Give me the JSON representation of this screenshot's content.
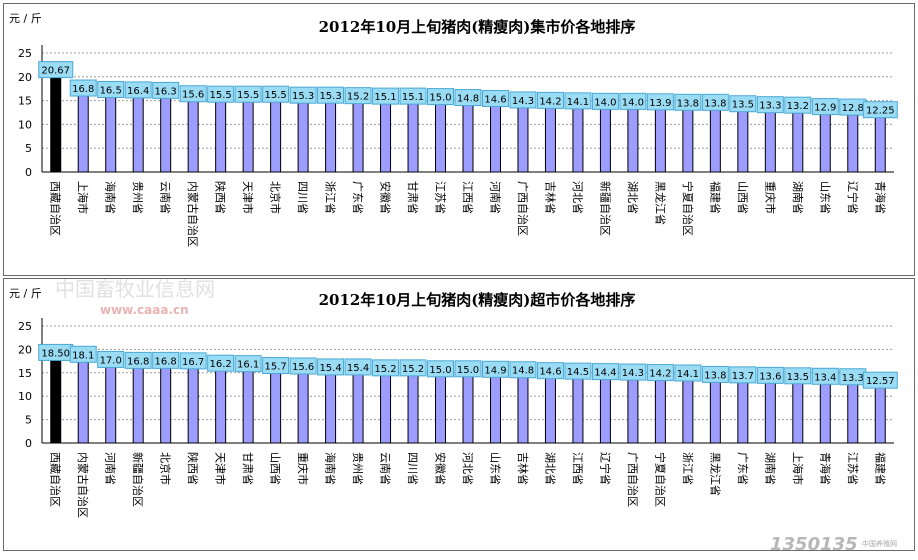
{
  "chart_data": [
    {
      "type": "bar",
      "title": "2012年10月上旬猪肉(精瘦肉)集市价各地排序",
      "ylabel": "元/斤",
      "ylim": [
        0,
        25
      ],
      "yticks": [
        0,
        5,
        10,
        15,
        20,
        25
      ],
      "grid": true,
      "categories": [
        "西藏自治区",
        "上海市",
        "海南省",
        "贵州省",
        "云南省",
        "内蒙古自治区",
        "陕西省",
        "天津市",
        "北京市",
        "四川省",
        "浙江省",
        "广东省",
        "安徽省",
        "甘肃省",
        "江苏省",
        "江西省",
        "河南省",
        "广西自治区",
        "吉林省",
        "河北省",
        "新疆自治区",
        "湖北省",
        "黑龙江省",
        "宁夏自治区",
        "福建省",
        "山西省",
        "重庆市",
        "湖南省",
        "山东省",
        "辽宁省",
        "青海省"
      ],
      "values": [
        20.67,
        16.8,
        16.5,
        16.4,
        16.3,
        15.6,
        15.5,
        15.5,
        15.5,
        15.3,
        15.3,
        15.2,
        15.1,
        15.1,
        15.0,
        14.8,
        14.6,
        14.3,
        14.2,
        14.1,
        14.0,
        14.0,
        13.9,
        13.8,
        13.8,
        13.5,
        13.3,
        13.2,
        12.9,
        12.8,
        12.25
      ],
      "data_labels": [
        "20.67",
        "16.8",
        "16.5",
        "16.4",
        "16.3",
        "15.6",
        "15.5",
        "15.5",
        "15.5",
        "15.3",
        "15.3",
        "15.2",
        "15.1",
        "15.1",
        "15.0",
        "14.8",
        "14.6",
        "14.3",
        "14.2",
        "14.1",
        "14.0",
        "14.0",
        "13.9",
        "13.8",
        "13.8",
        "13.5",
        "13.3",
        "13.2",
        "12.9",
        "12.8",
        "12.25"
      ]
    },
    {
      "type": "bar",
      "title": "2012年10月上旬猪肉(精瘦肉)超市价各地排序",
      "ylabel": "元/斤",
      "ylim": [
        0,
        25
      ],
      "yticks": [
        0,
        5,
        10,
        15,
        20,
        25
      ],
      "grid": true,
      "categories": [
        "西藏自治区",
        "内蒙古自治区",
        "河南省",
        "新疆自治区",
        "北京市",
        "陕西省",
        "天津市",
        "甘肃省",
        "山西省",
        "重庆市",
        "海南省",
        "贵州省",
        "云南省",
        "四川省",
        "安徽省",
        "河北省",
        "山东省",
        "吉林省",
        "湖北省",
        "江西省",
        "辽宁省",
        "广西自治区",
        "宁夏自治区",
        "浙江省",
        "黑龙江省",
        "广东省",
        "湖南省",
        "上海市",
        "青海省",
        "江苏省",
        "福建省"
      ],
      "values": [
        18.5,
        18.1,
        17.0,
        16.8,
        16.8,
        16.7,
        16.2,
        16.1,
        15.7,
        15.6,
        15.4,
        15.4,
        15.2,
        15.2,
        15.0,
        15.0,
        14.9,
        14.8,
        14.6,
        14.5,
        14.4,
        14.3,
        14.2,
        14.1,
        13.8,
        13.7,
        13.6,
        13.5,
        13.4,
        13.3,
        12.57
      ],
      "data_labels": [
        "18.50",
        "18.1",
        "17.0",
        "16.8",
        "16.8",
        "16.7",
        "16.2",
        "16.1",
        "15.7",
        "15.6",
        "15.4",
        "15.4",
        "15.2",
        "15.2",
        "15.0",
        "15.0",
        "14.9",
        "14.8",
        "14.6",
        "14.5",
        "14.4",
        "14.3",
        "14.2",
        "14.1",
        "13.8",
        "13.7",
        "13.6",
        "13.5",
        "13.4",
        "13.3",
        "12.57"
      ]
    }
  ],
  "watermarks": {
    "site_cn": "中国畜牧业信息网",
    "site_url": "www.caaa.cn",
    "corner_logo": "1350135",
    "corner_small": "中国养殖网"
  }
}
